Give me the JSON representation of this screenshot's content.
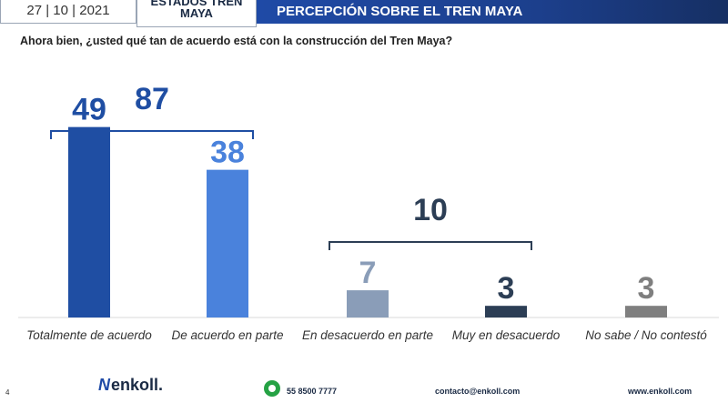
{
  "header": {
    "date": "27 | 10 | 2021",
    "tab_line1": "ESTADOS TREN",
    "tab_line2": "MAYA",
    "banner": "PERCEPCIÓN SOBRE EL TREN MAYA"
  },
  "question": "Ahora bien, ¿usted qué tan de acuerdo está con la construcción del Tren Maya?",
  "chart_data": {
    "type": "bar",
    "categories": [
      "Totalmente de acuerdo",
      "De acuerdo en parte",
      "En desacuerdo en parte",
      "Muy en desacuerdo",
      "No sabe / No contestó"
    ],
    "values": [
      49,
      38,
      7,
      3,
      3
    ],
    "colors": [
      "#1f4ea3",
      "#4a82dc",
      "#8a9db8",
      "#2c3e55",
      "#7f7f7f"
    ],
    "label_colors": [
      "#1f4ea3",
      "#4a82dc",
      "#8a9db8",
      "#2c3e55",
      "#7f7f7f"
    ],
    "groups": [
      {
        "value": 87,
        "start": 0,
        "end": 1,
        "color": "#1f4ea3"
      },
      {
        "value": 10,
        "start": 2,
        "end": 3,
        "color": "#2c3e55"
      }
    ],
    "ylim": [
      0,
      55
    ],
    "title": "",
    "xlabel": "",
    "ylabel": ""
  },
  "footer": {
    "page": "4",
    "logo": "enkoll.",
    "phone": "55 8500 7777",
    "email": "contacto@enkoll.com",
    "web": "www.enkoll.com"
  }
}
